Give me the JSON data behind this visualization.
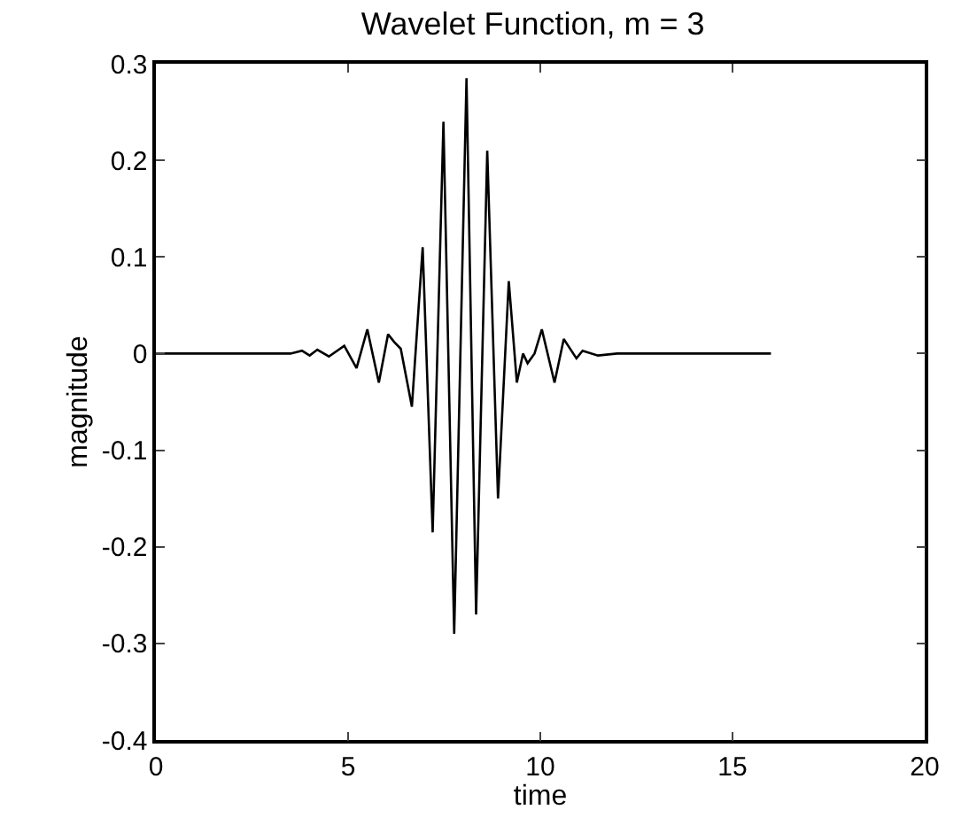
{
  "chart_data": {
    "type": "line",
    "title": "Wavelet Function, m = 3",
    "xlabel": "time",
    "ylabel": "magnitude",
    "series": [
      {
        "color": "#000000",
        "x": [
          0,
          3.5,
          3.8,
          4.0,
          4.2,
          4.5,
          4.9,
          5.22,
          5.5,
          5.8,
          6.04,
          6.2,
          6.37,
          6.66,
          6.94,
          7.2,
          7.48,
          7.76,
          8.08,
          8.33,
          8.62,
          8.9,
          9.18,
          9.39,
          9.55,
          9.67,
          9.85,
          10.04,
          10.37,
          10.61,
          10.94,
          11.1,
          11.5,
          12,
          16
        ],
        "values": [
          0,
          0,
          0.003,
          -0.002,
          0.004,
          -0.003,
          0.008,
          -0.015,
          0.025,
          -0.03,
          0.02,
          0.012,
          0.005,
          -0.055,
          0.11,
          -0.185,
          0.24,
          -0.29,
          0.285,
          -0.27,
          0.21,
          -0.15,
          0.075,
          -0.03,
          0.0,
          -0.01,
          0.0,
          0.025,
          -0.03,
          0.015,
          -0.005,
          0.003,
          -0.002,
          0,
          0
        ]
      }
    ],
    "xlim": [
      0,
      20
    ],
    "ylim": [
      -0.4,
      0.3
    ],
    "xticks": [
      0,
      5,
      10,
      15,
      20
    ],
    "yticks": [
      -0.4,
      -0.3,
      -0.2,
      -0.1,
      0,
      0.1,
      0.2,
      0.3
    ],
    "marker": "none",
    "line_style": "solid"
  }
}
